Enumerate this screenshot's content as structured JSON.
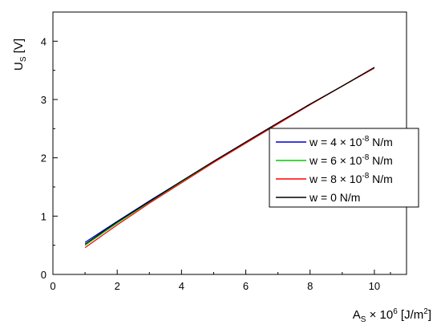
{
  "chart_data": {
    "type": "line",
    "xlabel": {
      "base": "A",
      "sub": "S",
      "mid": " × 10",
      "sup": "6",
      "unit_pre": " [J/m",
      "unit_sup": "2",
      "unit_post": "]"
    },
    "ylabel": {
      "base": "U",
      "sub": "S",
      "unit": " [V]"
    },
    "xlim": [
      0,
      11
    ],
    "ylim": [
      0,
      4.5
    ],
    "xticks": [
      0,
      2,
      4,
      6,
      8,
      10
    ],
    "yticks": [
      0,
      1,
      2,
      3,
      4
    ],
    "grid": false,
    "legend_placement": "center-right",
    "series": [
      {
        "name": "w = 4 × 10⁻⁸ N/m",
        "legend": {
          "pre": "w = 4 × 10",
          "sup": "-8",
          "post": " N/m"
        },
        "color": "#0000cc",
        "x": [
          1,
          2,
          3,
          4,
          5,
          6,
          7,
          8,
          9,
          10
        ],
        "y": [
          0.55,
          0.91,
          1.26,
          1.6,
          1.94,
          2.27,
          2.6,
          2.92,
          3.23,
          3.55
        ]
      },
      {
        "name": "w = 6 × 10⁻⁸ N/m",
        "legend": {
          "pre": "w = 6 × 10",
          "sup": "-8",
          "post": " N/m"
        },
        "color": "#00cc00",
        "x": [
          1,
          2,
          3,
          4,
          5,
          6,
          7,
          8,
          9,
          10
        ],
        "y": [
          0.5,
          0.88,
          1.24,
          1.59,
          1.93,
          2.26,
          2.59,
          2.91,
          3.23,
          3.54
        ]
      },
      {
        "name": "w = 8 × 10⁻⁸ N/m",
        "legend": {
          "pre": "w = 8 × 10",
          "sup": "-8",
          "post": " N/m"
        },
        "color": "#ff0000",
        "x": [
          1,
          2,
          3,
          4,
          5,
          6,
          7,
          8,
          9,
          10
        ],
        "y": [
          0.46,
          0.85,
          1.22,
          1.57,
          1.92,
          2.25,
          2.58,
          2.91,
          3.23,
          3.54
        ]
      },
      {
        "name": "w = 0 N/m",
        "legend": {
          "pre": "w = 0 N/m",
          "sup": "",
          "post": ""
        },
        "color": "#000000",
        "x": [
          1,
          2,
          3,
          4,
          5,
          6,
          7,
          8,
          9,
          10
        ],
        "y": [
          0.52,
          0.9,
          1.25,
          1.6,
          1.94,
          2.27,
          2.6,
          2.92,
          3.23,
          3.55
        ]
      }
    ]
  }
}
